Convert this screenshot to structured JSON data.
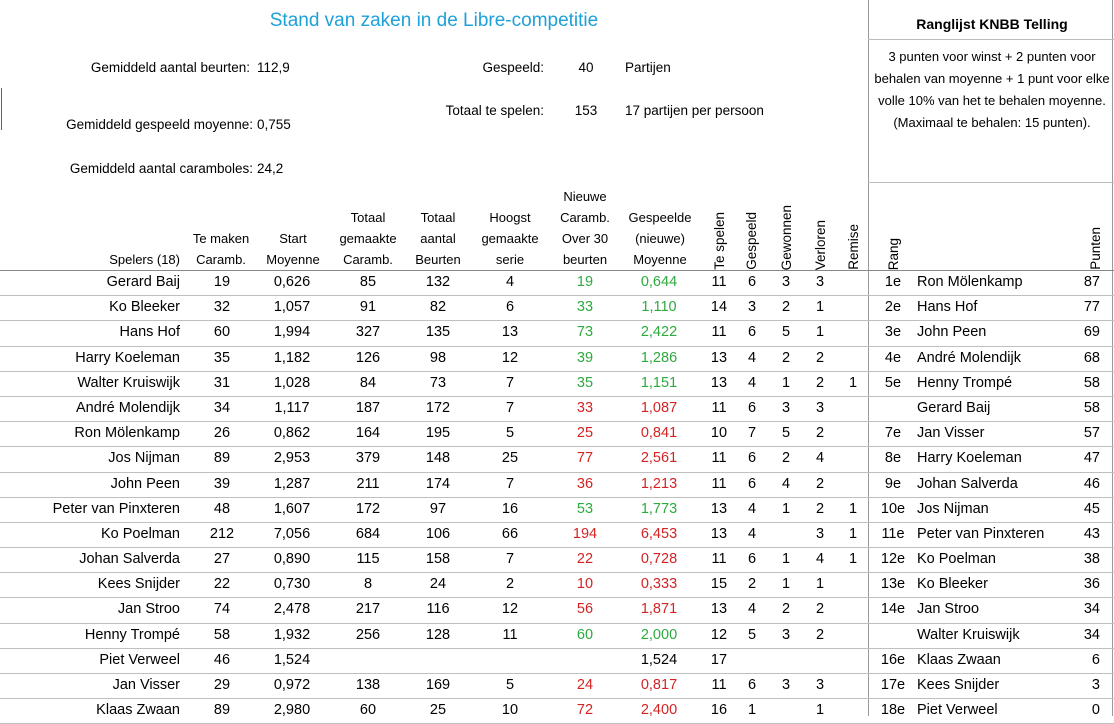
{
  "title": "Stand van zaken in de Libre-competitie",
  "stats": {
    "beurten_label": "Gemiddeld aantal beurten:",
    "beurten_value": "112,9",
    "moyenne_label": "Gemiddeld gespeeld moyenne:",
    "moyenne_value": "0,755",
    "carambole_label": "Gemiddeld aantal caramboles:",
    "carambole_value": "24,2",
    "gespeeld_label": "Gespeeld:",
    "gespeeld_value": "40",
    "gespeeld_unit": "Partijen",
    "tespelen_label": "Totaal te spelen:",
    "tespelen_value": "153",
    "tespelen_unit": "17 partijen per persoon"
  },
  "ranking": {
    "title": "Ranglijst KNBB Telling",
    "description": "3 punten voor winst + 2 punten voor behalen van moyenne + 1 punt voor elke volle 10% van het te behalen moyenne.\n(Maximaal te behalen: 15 punten)."
  },
  "headers": {
    "spelers": "Spelers (18)",
    "te_maken": [
      "Te maken",
      "Caramb."
    ],
    "start": [
      "Start",
      "Moyenne"
    ],
    "totaal_caramb": [
      "Totaal",
      "gemaakte",
      "Caramb."
    ],
    "totaal_beurten": [
      "Totaal",
      "aantal",
      "Beurten"
    ],
    "hoogst": [
      "Hoogst",
      "gemaakte",
      "serie"
    ],
    "nieuwe": [
      "Nieuwe",
      "Caramb.",
      "Over 30",
      "beurten"
    ],
    "gespeelde": [
      "Gespeelde",
      "(nieuwe)",
      "Moyenne"
    ],
    "te_spelen": "Te spelen",
    "gespeeld": "Gespeeld",
    "gewonnen": "Gewonnen",
    "verloren": "Verloren",
    "remise": "Remise",
    "rang": "Rang",
    "punten": "Punten"
  },
  "players": [
    {
      "name": "Gerard Baij",
      "te_maken": "19",
      "start": "0,626",
      "totaal": "85",
      "beurten": "132",
      "serie": "4",
      "nieuwe": "19",
      "moy": "0,644",
      "color": "green",
      "te_spelen": "11",
      "gespeeld": "6",
      "gewonnen": "3",
      "verloren": "3",
      "remise": ""
    },
    {
      "name": "Ko Bleeker",
      "te_maken": "32",
      "start": "1,057",
      "totaal": "91",
      "beurten": "82",
      "serie": "6",
      "nieuwe": "33",
      "moy": "1,110",
      "color": "green",
      "te_spelen": "14",
      "gespeeld": "3",
      "gewonnen": "2",
      "verloren": "1",
      "remise": ""
    },
    {
      "name": "Hans Hof",
      "te_maken": "60",
      "start": "1,994",
      "totaal": "327",
      "beurten": "135",
      "serie": "13",
      "nieuwe": "73",
      "moy": "2,422",
      "color": "green",
      "te_spelen": "11",
      "gespeeld": "6",
      "gewonnen": "5",
      "verloren": "1",
      "remise": ""
    },
    {
      "name": "Harry Koeleman",
      "te_maken": "35",
      "start": "1,182",
      "totaal": "126",
      "beurten": "98",
      "serie": "12",
      "nieuwe": "39",
      "moy": "1,286",
      "color": "green",
      "te_spelen": "13",
      "gespeeld": "4",
      "gewonnen": "2",
      "verloren": "2",
      "remise": ""
    },
    {
      "name": "Walter Kruiswijk",
      "te_maken": "31",
      "start": "1,028",
      "totaal": "84",
      "beurten": "73",
      "serie": "7",
      "nieuwe": "35",
      "moy": "1,151",
      "color": "green",
      "te_spelen": "13",
      "gespeeld": "4",
      "gewonnen": "1",
      "verloren": "2",
      "remise": "1"
    },
    {
      "name": "André Molendijk",
      "te_maken": "34",
      "start": "1,117",
      "totaal": "187",
      "beurten": "172",
      "serie": "7",
      "nieuwe": "33",
      "moy": "1,087",
      "color": "red",
      "te_spelen": "11",
      "gespeeld": "6",
      "gewonnen": "3",
      "verloren": "3",
      "remise": ""
    },
    {
      "name": "Ron Mölenkamp",
      "te_maken": "26",
      "start": "0,862",
      "totaal": "164",
      "beurten": "195",
      "serie": "5",
      "nieuwe": "25",
      "moy": "0,841",
      "color": "red",
      "te_spelen": "10",
      "gespeeld": "7",
      "gewonnen": "5",
      "verloren": "2",
      "remise": ""
    },
    {
      "name": "Jos Nijman",
      "te_maken": "89",
      "start": "2,953",
      "totaal": "379",
      "beurten": "148",
      "serie": "25",
      "nieuwe": "77",
      "moy": "2,561",
      "color": "red",
      "te_spelen": "11",
      "gespeeld": "6",
      "gewonnen": "2",
      "verloren": "4",
      "remise": ""
    },
    {
      "name": "John Peen",
      "te_maken": "39",
      "start": "1,287",
      "totaal": "211",
      "beurten": "174",
      "serie": "7",
      "nieuwe": "36",
      "moy": "1,213",
      "color": "red",
      "te_spelen": "11",
      "gespeeld": "6",
      "gewonnen": "4",
      "verloren": "2",
      "remise": ""
    },
    {
      "name": "Peter van Pinxteren",
      "te_maken": "48",
      "start": "1,607",
      "totaal": "172",
      "beurten": "97",
      "serie": "16",
      "nieuwe": "53",
      "moy": "1,773",
      "color": "green",
      "te_spelen": "13",
      "gespeeld": "4",
      "gewonnen": "1",
      "verloren": "2",
      "remise": "1"
    },
    {
      "name": "Ko Poelman",
      "te_maken": "212",
      "start": "7,056",
      "totaal": "684",
      "beurten": "106",
      "serie": "66",
      "nieuwe": "194",
      "moy": "6,453",
      "color": "red",
      "te_spelen": "13",
      "gespeeld": "4",
      "gewonnen": "",
      "verloren": "3",
      "remise": "1"
    },
    {
      "name": "Johan Salverda",
      "te_maken": "27",
      "start": "0,890",
      "totaal": "115",
      "beurten": "158",
      "serie": "7",
      "nieuwe": "22",
      "moy": "0,728",
      "color": "red",
      "te_spelen": "11",
      "gespeeld": "6",
      "gewonnen": "1",
      "verloren": "4",
      "remise": "1"
    },
    {
      "name": "Kees Snijder",
      "te_maken": "22",
      "start": "0,730",
      "totaal": "8",
      "beurten": "24",
      "serie": "2",
      "nieuwe": "10",
      "moy": "0,333",
      "color": "red",
      "te_spelen": "15",
      "gespeeld": "2",
      "gewonnen": "1",
      "verloren": "1",
      "remise": ""
    },
    {
      "name": "Jan Stroo",
      "te_maken": "74",
      "start": "2,478",
      "totaal": "217",
      "beurten": "116",
      "serie": "12",
      "nieuwe": "56",
      "moy": "1,871",
      "color": "red",
      "te_spelen": "13",
      "gespeeld": "4",
      "gewonnen": "2",
      "verloren": "2",
      "remise": ""
    },
    {
      "name": "Henny Trompé",
      "te_maken": "58",
      "start": "1,932",
      "totaal": "256",
      "beurten": "128",
      "serie": "11",
      "nieuwe": "60",
      "moy": "2,000",
      "color": "green",
      "te_spelen": "12",
      "gespeeld": "5",
      "gewonnen": "3",
      "verloren": "2",
      "remise": ""
    },
    {
      "name": "Piet Verweel",
      "te_maken": "46",
      "start": "1,524",
      "totaal": "",
      "beurten": "",
      "serie": "",
      "nieuwe": "",
      "moy": "1,524",
      "color": "black",
      "te_spelen": "17",
      "gespeeld": "",
      "gewonnen": "",
      "verloren": "",
      "remise": ""
    },
    {
      "name": "Jan Visser",
      "te_maken": "29",
      "start": "0,972",
      "totaal": "138",
      "beurten": "169",
      "serie": "5",
      "nieuwe": "24",
      "moy": "0,817",
      "color": "red",
      "te_spelen": "11",
      "gespeeld": "6",
      "gewonnen": "3",
      "verloren": "3",
      "remise": ""
    },
    {
      "name": "Klaas Zwaan",
      "te_maken": "89",
      "start": "2,980",
      "totaal": "60",
      "beurten": "25",
      "serie": "10",
      "nieuwe": "72",
      "moy": "2,400",
      "color": "red",
      "te_spelen": "16",
      "gespeeld": "1",
      "gewonnen": "",
      "verloren": "1",
      "remise": ""
    }
  ],
  "ranglijst": [
    {
      "rang": "1e",
      "naam": "Ron Mölenkamp",
      "punten": "87"
    },
    {
      "rang": "2e",
      "naam": "Hans Hof",
      "punten": "77"
    },
    {
      "rang": "3e",
      "naam": "John Peen",
      "punten": "69"
    },
    {
      "rang": "4e",
      "naam": "André Molendijk",
      "punten": "68"
    },
    {
      "rang": "5e",
      "naam": "Henny Trompé",
      "punten": "58"
    },
    {
      "rang": "",
      "naam": "Gerard Baij",
      "punten": "58"
    },
    {
      "rang": "7e",
      "naam": "Jan Visser",
      "punten": "57"
    },
    {
      "rang": "8e",
      "naam": "Harry Koeleman",
      "punten": "47"
    },
    {
      "rang": "9e",
      "naam": "Johan Salverda",
      "punten": "46"
    },
    {
      "rang": "10e",
      "naam": "Jos Nijman",
      "punten": "45"
    },
    {
      "rang": "11e",
      "naam": "Peter van Pinxteren",
      "punten": "43"
    },
    {
      "rang": "12e",
      "naam": "Ko Poelman",
      "punten": "38"
    },
    {
      "rang": "13e",
      "naam": "Ko Bleeker",
      "punten": "36"
    },
    {
      "rang": "14e",
      "naam": "Jan Stroo",
      "punten": "34"
    },
    {
      "rang": "",
      "naam": "Walter Kruiswijk",
      "punten": "34"
    },
    {
      "rang": "16e",
      "naam": "Klaas Zwaan",
      "punten": "6"
    },
    {
      "rang": "17e",
      "naam": "Kees Snijder",
      "punten": "3"
    },
    {
      "rang": "18e",
      "naam": "Piet Verweel",
      "punten": "0"
    }
  ]
}
